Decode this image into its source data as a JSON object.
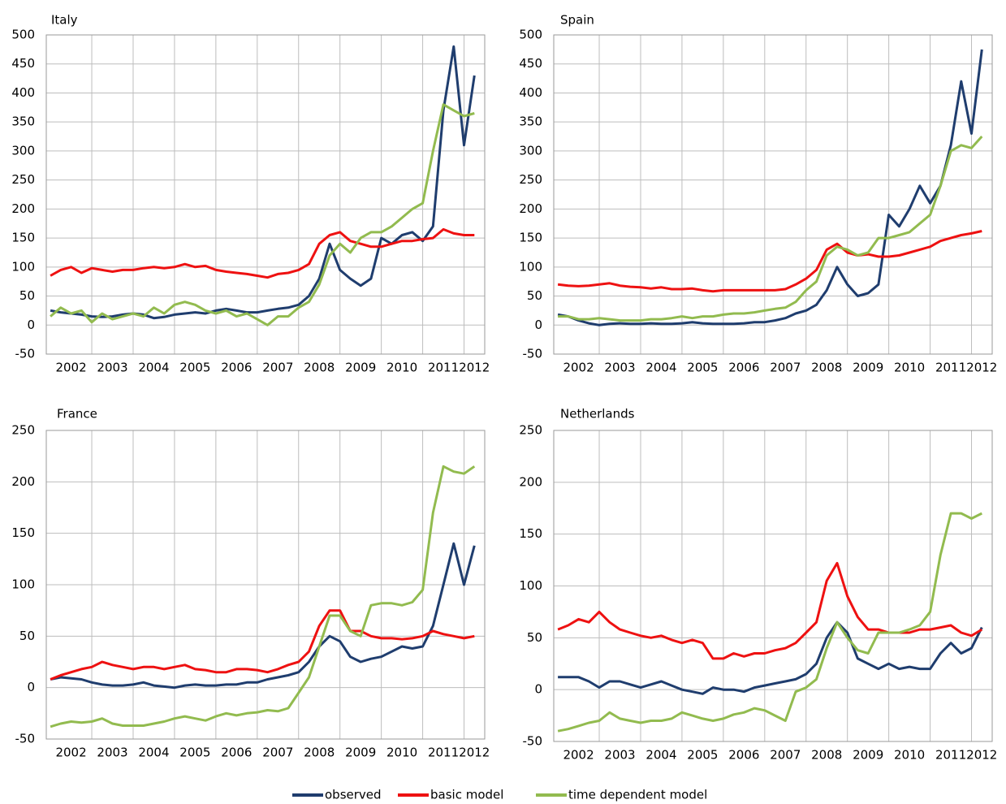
{
  "chart_data": [
    {
      "type": "line",
      "title": "Italy",
      "x": [
        2002,
        2002.25,
        2002.5,
        2002.75,
        2003,
        2003.25,
        2003.5,
        2003.75,
        2004,
        2004.25,
        2004.5,
        2004.75,
        2005,
        2005.25,
        2005.5,
        2005.75,
        2006,
        2006.25,
        2006.5,
        2006.75,
        2007,
        2007.25,
        2007.5,
        2007.75,
        2008,
        2008.25,
        2008.5,
        2008.75,
        2009,
        2009.25,
        2009.5,
        2009.75,
        2010,
        2010.25,
        2010.5,
        2010.75,
        2011,
        2011.25,
        2011.5,
        2011.75,
        2012,
        2012.25
      ],
      "series": [
        {
          "name": "observed",
          "color": "#1f3d6e",
          "values": [
            25,
            22,
            20,
            18,
            15,
            14,
            15,
            18,
            20,
            18,
            12,
            14,
            18,
            20,
            22,
            20,
            25,
            28,
            25,
            22,
            22,
            25,
            28,
            30,
            35,
            50,
            80,
            140,
            95,
            80,
            68,
            80,
            150,
            140,
            155,
            160,
            145,
            170,
            370,
            480,
            310,
            430
          ]
        },
        {
          "name": "basic model",
          "color": "#ee1111",
          "values": [
            85,
            95,
            100,
            90,
            98,
            95,
            92,
            95,
            95,
            98,
            100,
            98,
            100,
            105,
            100,
            102,
            95,
            92,
            90,
            88,
            85,
            82,
            88,
            90,
            95,
            105,
            140,
            155,
            160,
            145,
            140,
            135,
            135,
            140,
            145,
            145,
            148,
            150,
            165,
            158,
            155,
            155
          ]
        },
        {
          "name": "time dependent model",
          "color": "#92bb4f",
          "values": [
            15,
            30,
            20,
            25,
            5,
            20,
            10,
            15,
            20,
            15,
            30,
            20,
            35,
            40,
            35,
            25,
            20,
            25,
            15,
            20,
            10,
            0,
            15,
            15,
            30,
            40,
            70,
            120,
            140,
            125,
            150,
            160,
            160,
            170,
            185,
            200,
            210,
            300,
            380,
            370,
            360,
            365
          ]
        }
      ],
      "xlim": [
        2001.9,
        2012.5
      ],
      "xticks": [
        {
          "value": 2002,
          "label": "2002"
        },
        {
          "value": 2003,
          "label": "2003"
        },
        {
          "value": 2004,
          "label": "2004"
        },
        {
          "value": 2005,
          "label": "2005"
        },
        {
          "value": 2006,
          "label": "2006"
        },
        {
          "value": 2007,
          "label": "2007"
        },
        {
          "value": 2008,
          "label": "2008"
        },
        {
          "value": 2009,
          "label": "2009"
        },
        {
          "value": 2010,
          "label": "2010"
        },
        {
          "value": 2011,
          "label": "2011"
        },
        {
          "value": 2012,
          "label": "2012"
        }
      ],
      "ylim": [
        -50,
        500
      ],
      "yticks": [
        -50,
        0,
        50,
        100,
        150,
        200,
        250,
        300,
        350,
        400,
        450,
        500
      ],
      "grid": true
    },
    {
      "type": "line",
      "title": "Spain",
      "x": [
        2002,
        2002.25,
        2002.5,
        2002.75,
        2003,
        2003.25,
        2003.5,
        2003.75,
        2004,
        2004.25,
        2004.5,
        2004.75,
        2005,
        2005.25,
        2005.5,
        2005.75,
        2006,
        2006.25,
        2006.5,
        2006.75,
        2007,
        2007.25,
        2007.5,
        2007.75,
        2008,
        2008.25,
        2008.5,
        2008.75,
        2009,
        2009.25,
        2009.5,
        2009.75,
        2010,
        2010.25,
        2010.5,
        2010.75,
        2011,
        2011.25,
        2011.5,
        2011.75,
        2012,
        2012.25
      ],
      "series": [
        {
          "name": "observed",
          "color": "#1f3d6e",
          "values": [
            18,
            15,
            8,
            3,
            0,
            2,
            3,
            2,
            2,
            3,
            2,
            2,
            3,
            5,
            3,
            2,
            2,
            2,
            3,
            5,
            5,
            8,
            12,
            20,
            25,
            35,
            60,
            100,
            70,
            50,
            55,
            70,
            190,
            170,
            200,
            240,
            210,
            240,
            310,
            420,
            330,
            475
          ]
        },
        {
          "name": "basic model",
          "color": "#ee1111",
          "values": [
            70,
            68,
            67,
            68,
            70,
            72,
            68,
            66,
            65,
            63,
            65,
            62,
            62,
            63,
            60,
            58,
            60,
            60,
            60,
            60,
            60,
            60,
            62,
            70,
            80,
            95,
            130,
            140,
            125,
            120,
            122,
            118,
            118,
            120,
            125,
            130,
            135,
            145,
            150,
            155,
            158,
            162
          ]
        },
        {
          "name": "time dependent model",
          "color": "#92bb4f",
          "values": [
            15,
            15,
            10,
            10,
            12,
            10,
            8,
            8,
            8,
            10,
            10,
            12,
            15,
            12,
            15,
            15,
            18,
            20,
            20,
            22,
            25,
            28,
            30,
            40,
            60,
            75,
            120,
            135,
            130,
            120,
            125,
            150,
            150,
            155,
            160,
            175,
            190,
            240,
            300,
            310,
            305,
            325
          ]
        }
      ],
      "xlim": [
        2001.9,
        2012.5
      ],
      "xticks": [
        {
          "value": 2002,
          "label": "2002"
        },
        {
          "value": 2003,
          "label": "2003"
        },
        {
          "value": 2004,
          "label": "2004"
        },
        {
          "value": 2005,
          "label": "2005"
        },
        {
          "value": 2006,
          "label": "2006"
        },
        {
          "value": 2007,
          "label": "2007"
        },
        {
          "value": 2008,
          "label": "2008"
        },
        {
          "value": 2009,
          "label": "2009"
        },
        {
          "value": 2010,
          "label": "2010"
        },
        {
          "value": 2011,
          "label": "2011"
        },
        {
          "value": 2012,
          "label": "2012"
        }
      ],
      "ylim": [
        -50,
        500
      ],
      "yticks": [
        -50,
        0,
        50,
        100,
        150,
        200,
        250,
        300,
        350,
        400,
        450,
        500
      ],
      "grid": true
    },
    {
      "type": "line",
      "title": "France",
      "x": [
        2002,
        2002.25,
        2002.5,
        2002.75,
        2003,
        2003.25,
        2003.5,
        2003.75,
        2004,
        2004.25,
        2004.5,
        2004.75,
        2005,
        2005.25,
        2005.5,
        2005.75,
        2006,
        2006.25,
        2006.5,
        2006.75,
        2007,
        2007.25,
        2007.5,
        2007.75,
        2008,
        2008.25,
        2008.5,
        2008.75,
        2009,
        2009.25,
        2009.5,
        2009.75,
        2010,
        2010.25,
        2010.5,
        2010.75,
        2011,
        2011.25,
        2011.5,
        2011.75,
        2012,
        2012.25
      ],
      "series": [
        {
          "name": "observed",
          "color": "#1f3d6e",
          "values": [
            8,
            10,
            9,
            8,
            5,
            3,
            2,
            2,
            3,
            5,
            2,
            1,
            0,
            2,
            3,
            2,
            2,
            3,
            3,
            5,
            5,
            8,
            10,
            12,
            15,
            25,
            40,
            50,
            45,
            30,
            25,
            28,
            30,
            35,
            40,
            38,
            40,
            60,
            100,
            140,
            100,
            138
          ]
        },
        {
          "name": "basic model",
          "color": "#ee1111",
          "values": [
            8,
            12,
            15,
            18,
            20,
            25,
            22,
            20,
            18,
            20,
            20,
            18,
            20,
            22,
            18,
            17,
            15,
            15,
            18,
            18,
            17,
            15,
            18,
            22,
            25,
            35,
            60,
            75,
            75,
            55,
            55,
            50,
            48,
            48,
            47,
            48,
            50,
            55,
            52,
            50,
            48,
            50
          ]
        },
        {
          "name": "time dependent model",
          "color": "#92bb4f",
          "values": [
            -38,
            -35,
            -33,
            -34,
            -33,
            -30,
            -35,
            -37,
            -37,
            -37,
            -35,
            -33,
            -30,
            -28,
            -30,
            -32,
            -28,
            -25,
            -27,
            -25,
            -24,
            -22,
            -23,
            -20,
            -5,
            10,
            40,
            70,
            70,
            55,
            50,
            80,
            82,
            82,
            80,
            83,
            95,
            170,
            215,
            210,
            208,
            215
          ]
        }
      ],
      "xlim": [
        2001.9,
        2012.5
      ],
      "xticks": [
        {
          "value": 2002,
          "label": "2002"
        },
        {
          "value": 2003,
          "label": "2003"
        },
        {
          "value": 2004,
          "label": "2004"
        },
        {
          "value": 2005,
          "label": "2005"
        },
        {
          "value": 2006,
          "label": "2006"
        },
        {
          "value": 2007,
          "label": "2007"
        },
        {
          "value": 2008,
          "label": "2008"
        },
        {
          "value": 2009,
          "label": "2009"
        },
        {
          "value": 2010,
          "label": "2010"
        },
        {
          "value": 2011,
          "label": "2011"
        },
        {
          "value": 2012,
          "label": "2012"
        }
      ],
      "ylim": [
        -50,
        250
      ],
      "yticks": [
        -50,
        0,
        50,
        100,
        150,
        200,
        250
      ],
      "grid": true
    },
    {
      "type": "line",
      "title": "Netherlands",
      "x": [
        2002,
        2002.25,
        2002.5,
        2002.75,
        2003,
        2003.25,
        2003.5,
        2003.75,
        2004,
        2004.25,
        2004.5,
        2004.75,
        2005,
        2005.25,
        2005.5,
        2005.75,
        2006,
        2006.25,
        2006.5,
        2006.75,
        2007,
        2007.25,
        2007.5,
        2007.75,
        2008,
        2008.25,
        2008.5,
        2008.75,
        2009,
        2009.25,
        2009.5,
        2009.75,
        2010,
        2010.25,
        2010.5,
        2010.75,
        2011,
        2011.25,
        2011.5,
        2011.75,
        2012,
        2012.25
      ],
      "series": [
        {
          "name": "observed",
          "color": "#1f3d6e",
          "values": [
            12,
            12,
            12,
            8,
            2,
            8,
            8,
            5,
            2,
            5,
            8,
            4,
            0,
            -2,
            -4,
            2,
            0,
            0,
            -2,
            2,
            4,
            6,
            8,
            10,
            15,
            25,
            50,
            65,
            55,
            30,
            25,
            20,
            25,
            20,
            22,
            20,
            20,
            35,
            45,
            35,
            40,
            60
          ]
        },
        {
          "name": "basic model",
          "color": "#ee1111",
          "values": [
            58,
            62,
            68,
            65,
            75,
            65,
            58,
            55,
            52,
            50,
            52,
            48,
            45,
            48,
            45,
            30,
            30,
            35,
            32,
            35,
            35,
            38,
            40,
            45,
            55,
            65,
            105,
            122,
            90,
            70,
            58,
            58,
            55,
            55,
            55,
            58,
            58,
            60,
            62,
            55,
            52,
            58
          ]
        },
        {
          "name": "time dependent model",
          "color": "#92bb4f",
          "values": [
            -40,
            -38,
            -35,
            -32,
            -30,
            -22,
            -28,
            -30,
            -32,
            -30,
            -30,
            -28,
            -22,
            -25,
            -28,
            -30,
            -28,
            -24,
            -22,
            -18,
            -20,
            -25,
            -30,
            -2,
            2,
            10,
            40,
            65,
            50,
            38,
            35,
            55,
            55,
            55,
            58,
            62,
            75,
            130,
            170,
            170,
            165,
            170
          ]
        }
      ],
      "xlim": [
        2001.9,
        2012.5
      ],
      "xticks": [
        {
          "value": 2002,
          "label": "2002"
        },
        {
          "value": 2003,
          "label": "2003"
        },
        {
          "value": 2004,
          "label": "2004"
        },
        {
          "value": 2005,
          "label": "2005"
        },
        {
          "value": 2006,
          "label": "2006"
        },
        {
          "value": 2007,
          "label": "2007"
        },
        {
          "value": 2008,
          "label": "2008"
        },
        {
          "value": 2009,
          "label": "2009"
        },
        {
          "value": 2010,
          "label": "2010"
        },
        {
          "value": 2011,
          "label": "2011"
        },
        {
          "value": 2012,
          "label": "2012"
        }
      ],
      "ylim": [
        -50,
        250
      ],
      "yticks": [
        -50,
        0,
        50,
        100,
        150,
        200,
        250
      ],
      "grid": true
    }
  ]
}
